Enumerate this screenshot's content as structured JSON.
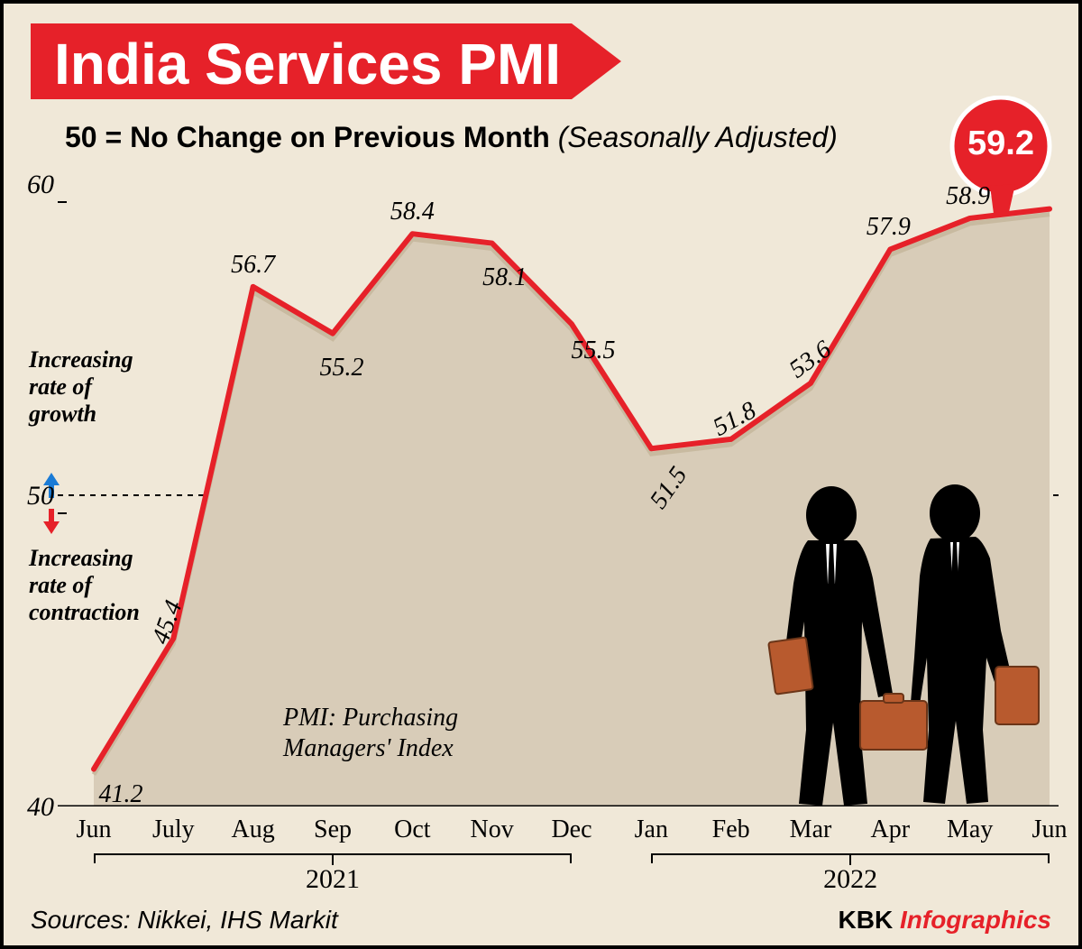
{
  "title": "India Services PMI",
  "subtitle_bold": "50 = No Change on Previous Month",
  "subtitle_italic": "(Seasonally Adjusted)",
  "chart": {
    "type": "line-area",
    "categories": [
      "Jun",
      "July",
      "Aug",
      "Sep",
      "Oct",
      "Nov",
      "Dec",
      "Jan",
      "Feb",
      "Mar",
      "Apr",
      "May",
      "Jun"
    ],
    "values": [
      41.2,
      45.4,
      56.7,
      55.2,
      58.4,
      58.1,
      55.5,
      51.5,
      51.8,
      53.6,
      57.9,
      58.9,
      59.2
    ],
    "highlight_index": 12,
    "highlight_value": "59.2",
    "ylim": [
      40,
      60
    ],
    "y_ticks": [
      40,
      50,
      60
    ],
    "reference_line": 50,
    "line_color": "#e62129",
    "line_width": 6,
    "area_fill": "#d8ccb8",
    "area_edge": "#c8baa0",
    "background": "#f0e8d8",
    "axis_color": "#000000",
    "year_groups": [
      {
        "label": "2021",
        "start": 0,
        "end": 6
      },
      {
        "label": "2022",
        "start": 7,
        "end": 12
      }
    ]
  },
  "annotations": {
    "growth": "Increasing rate of growth",
    "contraction": "Increasing rate of contraction",
    "pmi_def": "PMI: Purchasing Managers' Index"
  },
  "colors": {
    "banner": "#e62129",
    "up_arrow": "#1a7bd6",
    "down_arrow": "#e62129",
    "briefcase": "#b85a2e",
    "kbk_info": "#e62129"
  },
  "footer": {
    "sources": "Sources: Nikkei,  IHS Markit",
    "brand_prefix": "KBK ",
    "brand_suffix": "Infographics"
  }
}
